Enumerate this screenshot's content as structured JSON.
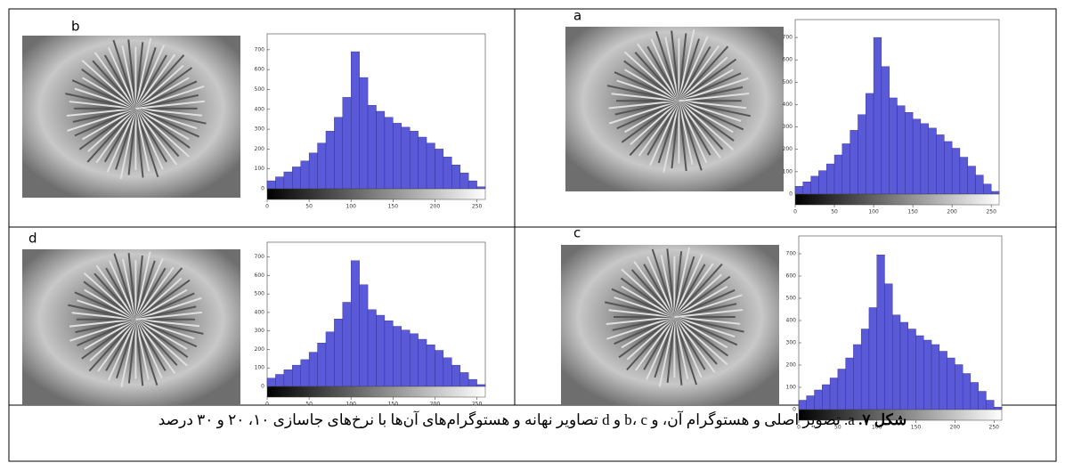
{
  "chart_data": [
    {
      "type": "histogram",
      "panel_label": "b",
      "color": "#5a5ad8",
      "bins": [
        0,
        10,
        20,
        30,
        40,
        50,
        60,
        70,
        80,
        90,
        100,
        110,
        120,
        130,
        140,
        150,
        160,
        170,
        180,
        190,
        200,
        210,
        220,
        230,
        240,
        250,
        260
      ],
      "values": [
        40,
        60,
        85,
        110,
        140,
        180,
        230,
        290,
        360,
        460,
        690,
        560,
        420,
        390,
        360,
        330,
        310,
        290,
        260,
        230,
        200,
        160,
        120,
        80,
        40,
        10
      ],
      "xlim": [
        0,
        260
      ],
      "xticks": [
        0,
        50,
        100,
        150,
        200,
        250
      ],
      "ylim": [
        0,
        780
      ],
      "yticks": [
        0,
        100,
        200,
        300,
        400,
        500,
        600,
        700
      ]
    },
    {
      "type": "histogram",
      "panel_label": "a",
      "color": "#5a5ad8",
      "bins": [
        0,
        10,
        20,
        30,
        40,
        50,
        60,
        70,
        80,
        90,
        100,
        110,
        120,
        130,
        140,
        150,
        160,
        170,
        180,
        190,
        200,
        210,
        220,
        230,
        240,
        250,
        260
      ],
      "values": [
        35,
        55,
        80,
        105,
        135,
        175,
        225,
        285,
        355,
        450,
        700,
        570,
        430,
        395,
        365,
        335,
        315,
        295,
        265,
        235,
        205,
        165,
        125,
        85,
        45,
        12
      ],
      "xlim": [
        0,
        260
      ],
      "xticks": [
        0,
        50,
        100,
        150,
        200,
        250
      ],
      "ylim": [
        0,
        780
      ],
      "yticks": [
        0,
        100,
        200,
        300,
        400,
        500,
        600,
        700
      ]
    },
    {
      "type": "histogram",
      "panel_label": "d",
      "color": "#5a5ad8",
      "bins": [
        0,
        10,
        20,
        30,
        40,
        50,
        60,
        70,
        80,
        90,
        100,
        110,
        120,
        130,
        140,
        150,
        160,
        170,
        180,
        190,
        200,
        210,
        220,
        230,
        240,
        250,
        260
      ],
      "values": [
        45,
        65,
        90,
        115,
        145,
        185,
        235,
        295,
        365,
        455,
        680,
        550,
        415,
        385,
        355,
        325,
        305,
        285,
        255,
        225,
        195,
        155,
        115,
        75,
        38,
        10
      ],
      "xlim": [
        0,
        260
      ],
      "xticks": [
        0,
        50,
        100,
        150,
        200,
        250
      ],
      "ylim": [
        0,
        780
      ],
      "yticks": [
        0,
        100,
        200,
        300,
        400,
        500,
        600,
        700
      ]
    },
    {
      "type": "histogram",
      "panel_label": "c",
      "color": "#5a5ad8",
      "bins": [
        0,
        10,
        20,
        30,
        40,
        50,
        60,
        70,
        80,
        90,
        100,
        110,
        120,
        130,
        140,
        150,
        160,
        170,
        180,
        190,
        200,
        210,
        220,
        230,
        240,
        250,
        260
      ],
      "values": [
        42,
        62,
        88,
        112,
        142,
        182,
        232,
        292,
        362,
        458,
        695,
        565,
        425,
        392,
        362,
        332,
        312,
        292,
        262,
        232,
        202,
        162,
        122,
        82,
        42,
        11
      ],
      "xlim": [
        0,
        260
      ],
      "xticks": [
        0,
        50,
        100,
        150,
        200,
        250
      ],
      "ylim": [
        0,
        780
      ],
      "yticks": [
        0,
        100,
        200,
        300,
        400,
        500,
        600,
        700
      ]
    }
  ],
  "caption": {
    "bold": "شکل ۷.",
    "text": "a. تصویر اصلی و هستوگرام آن، و b، c و d تصاویر نهانه و هستوگرام‌های آن‌ها با نرخ‌های جاسازی ۱۰، ۲۰ و ۳۰ درصد"
  }
}
